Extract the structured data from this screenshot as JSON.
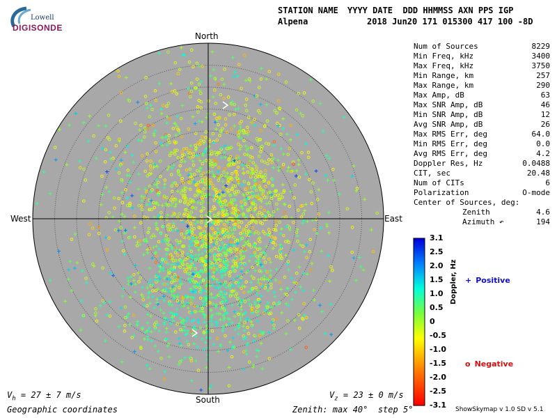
{
  "logo": {
    "line1": "Lowell",
    "line2": "DIGISONDE"
  },
  "header": {
    "station_label": "STATION NAME",
    "station_value": "Alpena",
    "columns_label": "YYYY DATE  DDD HHMMSS AXN PPS IGP",
    "columns_value": "2018 Jun20 171 015300 417 100 -8D"
  },
  "compass": {
    "north": "North",
    "south": "South",
    "east": "East",
    "west": "West"
  },
  "stats": [
    {
      "label": "Num of Sources",
      "value": "8229"
    },
    {
      "label": "Min Freq, kHz",
      "value": "3400"
    },
    {
      "label": "Max Freq, kHz",
      "value": "3750"
    },
    {
      "label": "Min Range, km",
      "value": "257"
    },
    {
      "label": "Max Range, km",
      "value": "290"
    },
    {
      "label": "Max Amp, dB",
      "value": "63"
    },
    {
      "label": "Max SNR Amp, dB",
      "value": "46"
    },
    {
      "label": "Min SNR Amp, dB",
      "value": "12"
    },
    {
      "label": "Avg SNR Amp, dB",
      "value": "26"
    },
    {
      "label": "Max RMS Err, deg",
      "value": "64.0"
    },
    {
      "label": "Min RMS Err, deg",
      "value": "0.0"
    },
    {
      "label": "Avg RMS Err, deg",
      "value": "4.2"
    },
    {
      "label": "Doppler Res, Hz",
      "value": "0.0488"
    },
    {
      "label": "CIT, sec",
      "value": "20.48"
    },
    {
      "label": "Num of CITs",
      "value": "6"
    },
    {
      "label": "Polarization",
      "value": "O-mode"
    },
    {
      "label": "Center of Sources, deg:",
      "value": ""
    },
    {
      "label": "Zenith",
      "value": "4.6"
    },
    {
      "label": "Azimuth ↶",
      "value": "194"
    }
  ],
  "colorbar": {
    "label": "Doppler, Hz",
    "ticks": [
      "3.1",
      "2.5",
      "2.0",
      "1.5",
      "1.0",
      "0.5",
      "0",
      "-0.5",
      "-1.0",
      "-1.5",
      "-2.0",
      "-2.5",
      "-3.1"
    ],
    "range": [
      -3.1,
      3.1
    ]
  },
  "legend": {
    "positive_symbol": "+",
    "positive_label": "Positive",
    "positive_color": "#1010c0",
    "negative_symbol": "o",
    "negative_label": "Negative",
    "negative_color": "#d01010"
  },
  "footer": {
    "vh": "= 27 ± 7 m/s",
    "vz": "= 23 ± 0 m/s",
    "coords": "Geographic coordinates",
    "zenith": "Zenith: max 40°  step 5°",
    "version": "ShowSkymap v 1.0   SD v 5.1"
  },
  "skymap": {
    "max_zenith_deg": 40,
    "step_deg": 5,
    "background": "#a8a8a8"
  }
}
